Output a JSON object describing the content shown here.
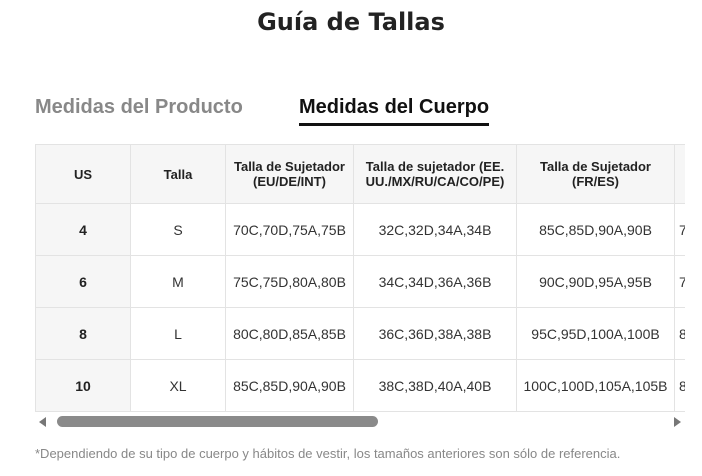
{
  "title": "Guía de Tallas",
  "tabs": [
    {
      "label": "Medidas del Producto",
      "active": false
    },
    {
      "label": "Medidas del Cuerpo",
      "active": true
    }
  ],
  "table": {
    "headers": [
      "US",
      "Talla",
      "Talla de Sujetador (EU/DE/INT)",
      "Talla de sujetador (EE. UU./MX/RU/CA/CO/PE)",
      "Talla de Sujetador (FR/ES)",
      ""
    ],
    "rows": [
      [
        "4",
        "S",
        "70C,70D,75A,75B",
        "32C,32D,34A,34B",
        "85C,85D,90A,90B",
        "7"
      ],
      [
        "6",
        "M",
        "75C,75D,80A,80B",
        "34C,34D,36A,36B",
        "90C,90D,95A,95B",
        "7"
      ],
      [
        "8",
        "L",
        "80C,80D,85A,85B",
        "36C,36D,38A,38B",
        "95C,95D,100A,100B",
        "8"
      ],
      [
        "10",
        "XL",
        "85C,85D,90A,90B",
        "38C,38D,40A,40B",
        "100C,100D,105A,105B",
        "8"
      ]
    ]
  },
  "footnote": "*Dependiendo de su tipo de cuerpo y hábitos de vestir, los tamaños anteriores son sólo de referencia.",
  "colors": {
    "active_tab": "#111111",
    "inactive_tab": "#888888",
    "header_bg": "#f6f6f6",
    "border": "#e3e3e3"
  }
}
